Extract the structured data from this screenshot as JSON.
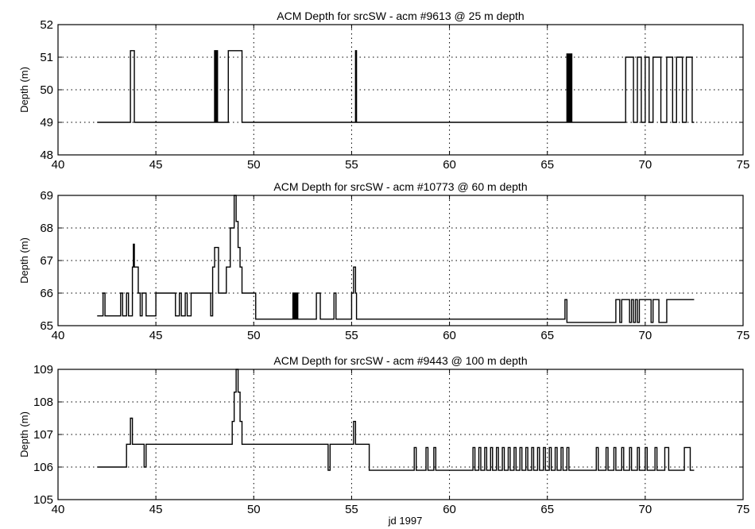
{
  "figure": {
    "xlabel": "jd 1997"
  },
  "chart_data": [
    {
      "type": "line",
      "title": "ACM Depth for srcSW - acm #9613 @ 25 m depth",
      "xlabel": "",
      "ylabel": "Depth (m)",
      "xlim": [
        40,
        75
      ],
      "ylim": [
        48,
        52
      ],
      "xticks": [
        40,
        45,
        50,
        55,
        60,
        65,
        70,
        75
      ],
      "yticks": [
        48,
        49,
        50,
        51,
        52
      ],
      "grid": true,
      "series": [
        {
          "step": true,
          "x": [
            42.0,
            43.7,
            43.8,
            43.9,
            48.0,
            48.05,
            48.1,
            48.15,
            48.2,
            48.7,
            49.4,
            55.2,
            55.25,
            66.0,
            66.05,
            66.1,
            66.15,
            66.2,
            66.25,
            66.3,
            69.0,
            69.4,
            69.6,
            69.8,
            70.0,
            70.2,
            70.4,
            70.8,
            71.1,
            71.4,
            71.6,
            71.9,
            72.1,
            72.4,
            72.5
          ],
          "y": [
            49.0,
            51.2,
            51.2,
            49.0,
            51.2,
            49.0,
            51.2,
            49.0,
            49.0,
            51.2,
            49.0,
            51.2,
            49.0,
            51.1,
            49.0,
            51.1,
            49.0,
            51.1,
            49.0,
            49.0,
            51.0,
            49.0,
            51.0,
            49.0,
            51.0,
            49.0,
            51.0,
            49.0,
            51.0,
            49.0,
            51.0,
            49.0,
            51.0,
            49.0,
            49.0
          ]
        }
      ]
    },
    {
      "type": "line",
      "title": "ACM Depth for srcSW - acm #10773 @ 60 m depth",
      "xlabel": "",
      "ylabel": "Depth (m)",
      "xlim": [
        40,
        75
      ],
      "ylim": [
        65,
        69
      ],
      "xticks": [
        40,
        45,
        50,
        55,
        60,
        65,
        70,
        75
      ],
      "yticks": [
        65,
        66,
        67,
        68,
        69
      ],
      "grid": true,
      "series": [
        {
          "step": true,
          "x": [
            42.0,
            42.3,
            42.4,
            43.2,
            43.3,
            43.5,
            43.6,
            43.8,
            43.85,
            43.9,
            44.1,
            44.2,
            44.3,
            44.5,
            45.0,
            45.2,
            46.0,
            46.2,
            46.3,
            46.5,
            46.6,
            46.8,
            47.8,
            47.9,
            48.0,
            48.2,
            48.3,
            48.6,
            48.7,
            48.8,
            49.0,
            49.1,
            49.2,
            49.3,
            49.4,
            49.5,
            49.6,
            49.7,
            50.1,
            50.3,
            52.0,
            52.05,
            52.1,
            52.15,
            52.2,
            52.25,
            53.2,
            53.4,
            54.1,
            54.2,
            55.0,
            55.1,
            55.2,
            55.25,
            65.9,
            66.0,
            68.5,
            68.7,
            68.8,
            69.2,
            69.3,
            69.4,
            69.5,
            69.6,
            69.7,
            70.3,
            70.4,
            70.7,
            71.1,
            72.5
          ],
          "y": [
            65.3,
            66.0,
            65.3,
            66.0,
            65.3,
            66.0,
            65.3,
            66.8,
            67.5,
            66.8,
            66.0,
            65.3,
            66.0,
            65.3,
            66.0,
            66.0,
            65.3,
            66.0,
            65.3,
            66.0,
            65.3,
            66.0,
            65.3,
            66.8,
            67.4,
            66.0,
            66.0,
            66.8,
            66.8,
            68.0,
            69.0,
            68.2,
            67.4,
            66.8,
            66.0,
            66.0,
            66.0,
            66.0,
            65.2,
            65.2,
            66.0,
            65.2,
            66.0,
            65.2,
            66.0,
            65.2,
            66.0,
            65.2,
            66.0,
            65.2,
            66.0,
            66.8,
            66.0,
            65.2,
            65.8,
            65.1,
            65.8,
            65.1,
            65.8,
            65.1,
            65.8,
            65.1,
            65.8,
            65.1,
            65.8,
            65.1,
            65.8,
            65.1,
            65.8,
            65.8
          ]
        }
      ]
    },
    {
      "type": "line",
      "title": "ACM Depth for srcSW - acm #9443 @ 100 m depth",
      "xlabel": "",
      "ylabel": "Depth (m)",
      "xlim": [
        40,
        75
      ],
      "ylim": [
        105,
        109
      ],
      "xticks": [
        40,
        45,
        50,
        55,
        60,
        65,
        70,
        75
      ],
      "yticks": [
        105,
        106,
        107,
        108,
        109
      ],
      "grid": true,
      "series": [
        {
          "step": true,
          "x": [
            42.0,
            43.5,
            43.7,
            43.8,
            44.4,
            44.5,
            48.9,
            49.0,
            49.1,
            49.2,
            49.3,
            49.4,
            53.8,
            53.9,
            55.1,
            55.2,
            55.9,
            58.2,
            58.3,
            58.8,
            58.9,
            59.2,
            59.3,
            61.2,
            61.3,
            61.5,
            61.6,
            61.8,
            61.9,
            62.1,
            62.2,
            62.4,
            62.5,
            62.7,
            62.8,
            63.0,
            63.1,
            63.3,
            63.4,
            63.6,
            63.7,
            63.9,
            64.0,
            64.2,
            64.3,
            64.5,
            64.6,
            64.8,
            64.9,
            65.1,
            65.2,
            65.4,
            65.5,
            65.7,
            65.8,
            66.0,
            66.1,
            67.5,
            67.6,
            68.0,
            68.1,
            68.4,
            68.5,
            68.8,
            68.9,
            69.2,
            69.3,
            69.6,
            69.7,
            70.0,
            70.1,
            70.5,
            70.6,
            71.0,
            71.2,
            72.0,
            72.3,
            72.5
          ],
          "y": [
            106.0,
            106.7,
            107.5,
            106.7,
            106.0,
            106.7,
            107.4,
            108.3,
            109.0,
            108.3,
            107.4,
            106.7,
            105.9,
            106.7,
            107.4,
            106.7,
            105.9,
            106.6,
            105.9,
            106.6,
            105.9,
            106.6,
            105.9,
            106.6,
            105.9,
            106.6,
            105.9,
            106.6,
            105.9,
            106.6,
            105.9,
            106.6,
            105.9,
            106.6,
            105.9,
            106.6,
            105.9,
            106.6,
            105.9,
            106.6,
            105.9,
            106.6,
            105.9,
            106.6,
            105.9,
            106.6,
            105.9,
            106.6,
            105.9,
            106.6,
            105.9,
            106.6,
            105.9,
            106.6,
            105.9,
            106.6,
            105.9,
            106.6,
            105.9,
            106.6,
            105.9,
            106.6,
            105.9,
            106.6,
            105.9,
            106.6,
            105.9,
            106.6,
            105.9,
            106.6,
            105.9,
            106.6,
            105.9,
            106.6,
            105.9,
            106.6,
            105.9,
            105.9
          ]
        }
      ]
    }
  ]
}
